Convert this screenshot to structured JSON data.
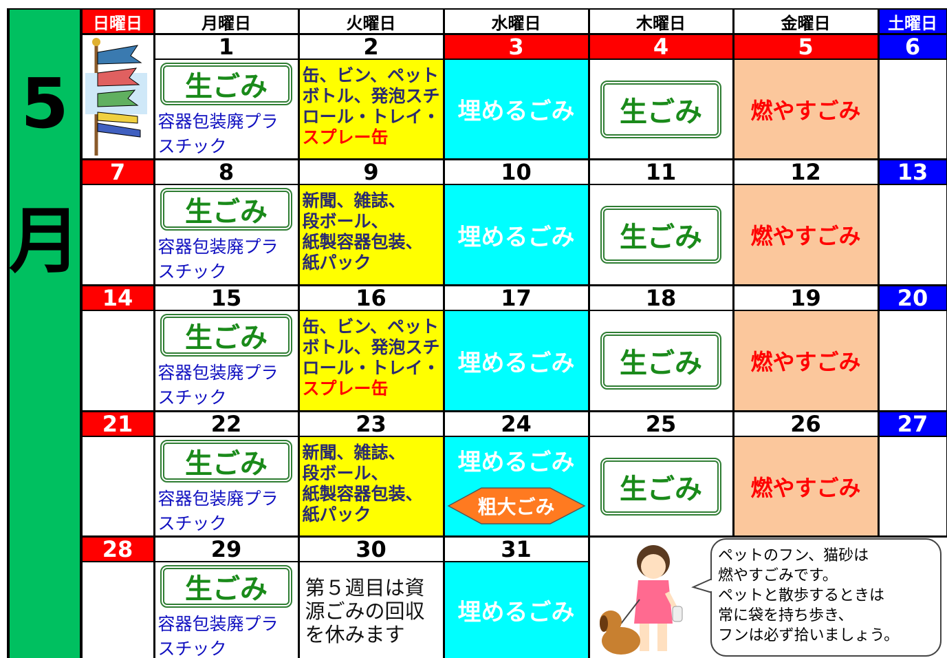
{
  "month": {
    "number": "5",
    "unit": "月"
  },
  "weekdays": [
    "日曜日",
    "月曜日",
    "火曜日",
    "水曜日",
    "木曜日",
    "金曜日",
    "土曜日"
  ],
  "weeks": [
    {
      "days": [
        null,
        {
          "date": 1,
          "nama": "生ごみ",
          "plastic": "容器包装廃プラスチック"
        },
        {
          "date": 2,
          "shigen": {
            "lines": [
              "缶、ビン、ペット",
              "ボトル、発泡スチ",
              "ロール・トレイ・"
            ],
            "alert": "スプレー缶"
          }
        },
        {
          "date": 3,
          "holiday": true,
          "umeru": "埋めるごみ"
        },
        {
          "date": 4,
          "holiday": true,
          "nama": "生ごみ"
        },
        {
          "date": 5,
          "holiday": true,
          "moyasu": "燃やすごみ"
        },
        {
          "date": 6
        }
      ]
    },
    {
      "days": [
        {
          "date": 7
        },
        {
          "date": 8,
          "nama": "生ごみ",
          "plastic": "容器包装廃プラスチック"
        },
        {
          "date": 9,
          "shigen": {
            "lines": [
              "新聞、雑誌、",
              "段ボール、",
              "紙製容器包装、",
              "紙パック"
            ]
          }
        },
        {
          "date": 10,
          "umeru": "埋めるごみ"
        },
        {
          "date": 11,
          "nama": "生ごみ"
        },
        {
          "date": 12,
          "moyasu": "燃やすごみ"
        },
        {
          "date": 13
        }
      ]
    },
    {
      "days": [
        {
          "date": 14
        },
        {
          "date": 15,
          "nama": "生ごみ",
          "plastic": "容器包装廃プラスチック"
        },
        {
          "date": 16,
          "shigen": {
            "lines": [
              "缶、ビン、ペット",
              "ボトル、発泡スチ",
              "ロール・トレイ・"
            ],
            "alert": "スプレー缶"
          }
        },
        {
          "date": 17,
          "umeru": "埋めるごみ"
        },
        {
          "date": 18,
          "nama": "生ごみ"
        },
        {
          "date": 19,
          "moyasu": "燃やすごみ"
        },
        {
          "date": 20
        }
      ]
    },
    {
      "days": [
        {
          "date": 21
        },
        {
          "date": 22,
          "nama": "生ごみ",
          "plastic": "容器包装廃プラスチック"
        },
        {
          "date": 23,
          "shigen": {
            "lines": [
              "新聞、雑誌、",
              "段ボール、",
              "紙製容器包装、",
              "紙パック"
            ]
          }
        },
        {
          "date": 24,
          "umeru": "埋めるごみ",
          "sodai": "粗大ごみ"
        },
        {
          "date": 25,
          "nama": "生ごみ"
        },
        {
          "date": 26,
          "moyasu": "燃やすごみ"
        },
        {
          "date": 27
        }
      ]
    },
    {
      "days": [
        {
          "date": 28
        },
        {
          "date": 29,
          "nama": "生ごみ",
          "plastic": "容器包装廃プラスチック"
        },
        {
          "date": 30,
          "note": [
            "第５週目は資",
            "源ごみの回収",
            "を休みます"
          ]
        },
        {
          "date": 31,
          "umeru": "埋めるごみ"
        }
      ],
      "bubble": [
        "ペットのフン、猫砂は",
        "燃やすごみです。",
        "ペットと散歩するときは",
        "常に袋を持ち歩き、",
        "フンは必ず拾いましょう。"
      ]
    }
  ]
}
